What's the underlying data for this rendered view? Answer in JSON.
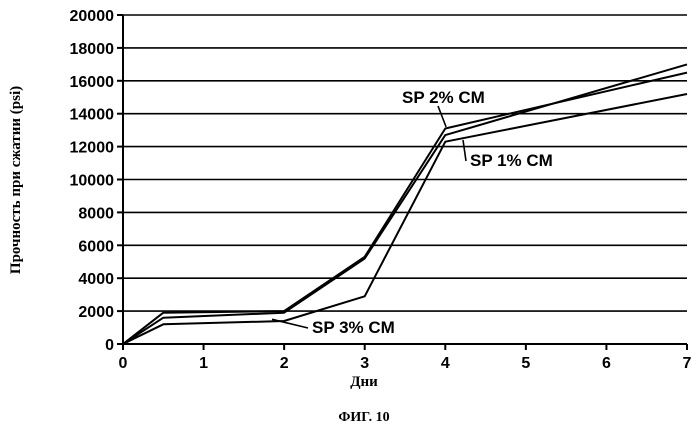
{
  "chart_data": {
    "type": "line",
    "title": "",
    "xlabel": "Дни",
    "ylabel": "Прочность при сжатии (psi)",
    "caption": "ФИГ. 10",
    "xlim": [
      0,
      7
    ],
    "ylim": [
      0,
      20000
    ],
    "x_ticks": [
      0,
      1,
      2,
      3,
      4,
      5,
      6,
      7
    ],
    "y_ticks": [
      0,
      2000,
      4000,
      6000,
      8000,
      10000,
      12000,
      14000,
      16000,
      18000,
      20000
    ],
    "grid": "horizontal",
    "series": [
      {
        "name": "SP 2% CM",
        "x": [
          0,
          0.5,
          2,
          3,
          4,
          7
        ],
        "y": [
          0,
          1900,
          2000,
          5300,
          13100,
          16500
        ]
      },
      {
        "name": "SP 1% CM",
        "x": [
          0,
          0.5,
          2,
          3,
          4,
          7
        ],
        "y": [
          0,
          1600,
          1900,
          5200,
          12700,
          17000
        ]
      },
      {
        "name": "SP 3% CM",
        "x": [
          0,
          0.5,
          2,
          3,
          4,
          7
        ],
        "y": [
          0,
          1200,
          1400,
          2900,
          12300,
          15200
        ]
      }
    ]
  }
}
